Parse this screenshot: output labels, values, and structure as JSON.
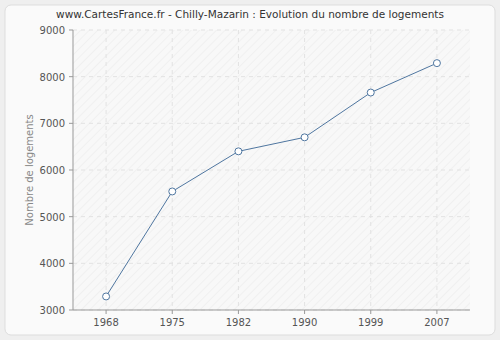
{
  "chart_data": {
    "type": "line",
    "title": "www.CartesFrance.fr - Chilly-Mazarin : Evolution du nombre de logements",
    "y_label": "Nombre de logements",
    "categories": [
      "1968",
      "1975",
      "1982",
      "1990",
      "1999",
      "2007"
    ],
    "values": [
      3290,
      5540,
      6400,
      6700,
      7660,
      8290
    ],
    "color": "#4f76a0",
    "marker": "circle",
    "ylim": [
      3000,
      9000
    ],
    "yticks": [
      3000,
      4000,
      5000,
      6000,
      7000,
      8000,
      9000
    ],
    "grid": true
  }
}
